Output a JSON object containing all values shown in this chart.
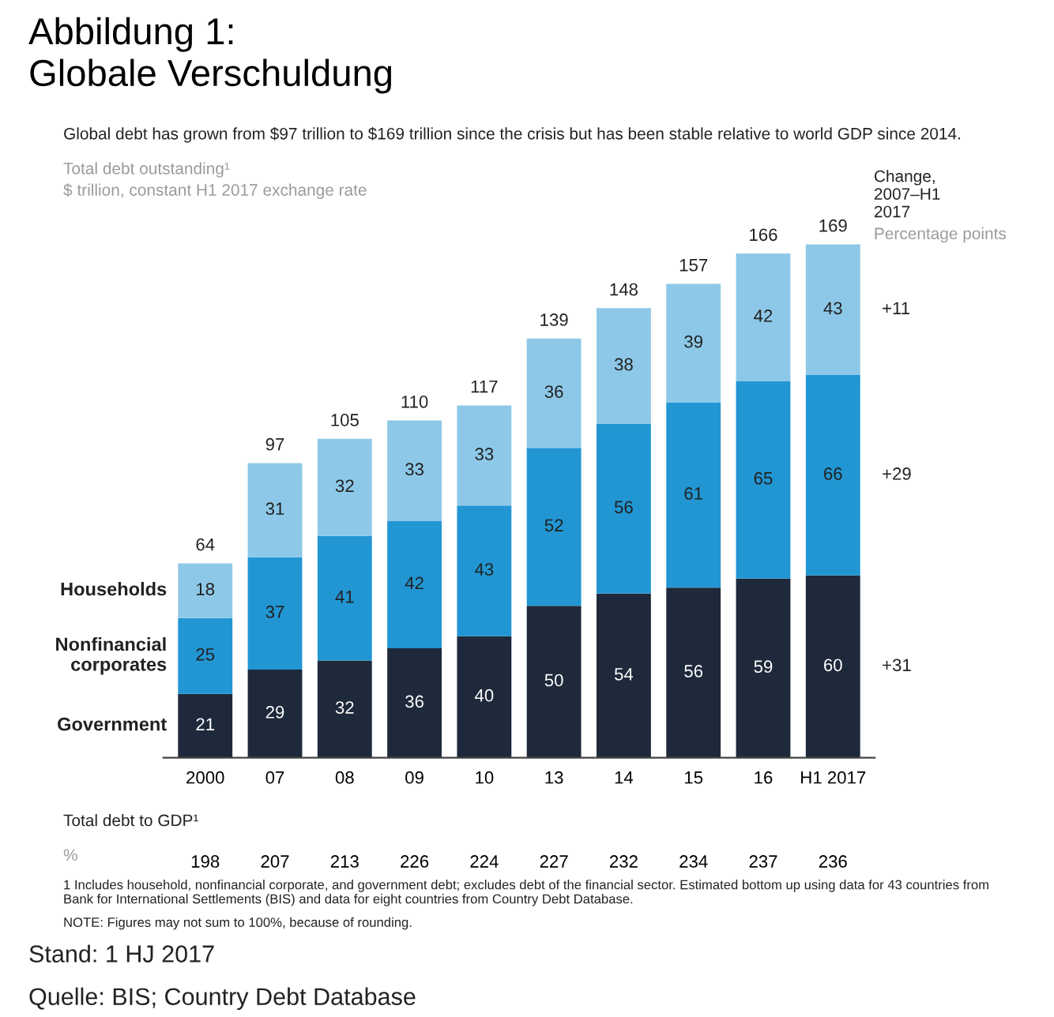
{
  "chart_data": {
    "type": "bar",
    "title": "Abbildung 1:",
    "subtitle": "Globale Verschuldung",
    "stacked": true,
    "data_labels": true,
    "legend": false,
    "grid": false,
    "categories": [
      "2000",
      "07",
      "08",
      "09",
      "10",
      "13",
      "14",
      "15",
      "16",
      "H1 2017"
    ],
    "series": [
      {
        "name": "Government",
        "color": "#1e293b",
        "values": [
          21,
          29,
          32,
          36,
          40,
          50,
          54,
          56,
          59,
          60
        ]
      },
      {
        "name": "Nonfinancial corporates",
        "color": "#2196d3",
        "values": [
          25,
          37,
          41,
          42,
          43,
          52,
          56,
          61,
          65,
          66
        ]
      },
      {
        "name": "Households",
        "color": "#8ec8e8",
        "values": [
          18,
          31,
          32,
          33,
          33,
          36,
          38,
          39,
          42,
          43
        ]
      }
    ],
    "totals": [
      "64",
      "97",
      "105",
      "110",
      "117",
      "139",
      "148",
      "157",
      "166",
      "169"
    ],
    "annotations": [
      "Global debt has grown from $97 trillion to $169 trillion since the crisis but has been stable relative to world GDP since 2014.",
      "Total debt outstanding¹",
      "$ trillion, constant H1 2017 exchange rate",
      "Change, 2007–H1 2017",
      "Percentage points",
      "+11",
      "+29",
      "+31",
      "Total debt to GDP¹",
      "%",
      "198",
      "207",
      "213",
      "226",
      "224",
      "227",
      "232",
      "234",
      "237",
      "236",
      "1 Includes household, nonfinancial corporate, and government debt; excludes debt of the financial sector. Estimated bottom up using data for 43 countries from Bank for International Settlements (BIS) and data for eight countries from Country Debt Database.",
      "NOTE: Figures may not sum to 100%, because of rounding.",
      "Stand: 1 HJ 2017",
      "Quelle: BIS; Country Debt Database"
    ]
  }
}
